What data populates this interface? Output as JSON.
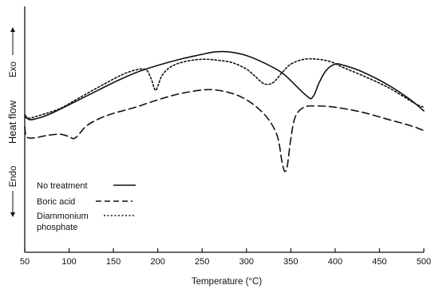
{
  "chart_data": {
    "type": "line",
    "xlabel": "Temperature (°C)",
    "ylabel": {
      "main": "Heat flow",
      "top": "Exo",
      "bottom": "Endo"
    },
    "xlim": [
      50,
      500
    ],
    "ylim": [
      0,
      10
    ],
    "xticks": [
      50,
      100,
      150,
      200,
      250,
      300,
      350,
      400,
      450,
      500
    ],
    "grid": false,
    "legend_position": "bottom-left",
    "series": [
      {
        "name": "No treatment",
        "style": "solid",
        "x": [
          50,
          55,
          65,
          80,
          100,
          125,
          150,
          175,
          200,
          225,
          250,
          265,
          280,
          300,
          320,
          340,
          355,
          365,
          370,
          373,
          377,
          382,
          390,
          400,
          410,
          430,
          460,
          485,
          500
        ],
        "y": [
          5.6,
          5.4,
          5.45,
          5.65,
          6.0,
          6.45,
          6.9,
          7.3,
          7.6,
          7.85,
          8.05,
          8.15,
          8.15,
          8.0,
          7.7,
          7.3,
          6.8,
          6.45,
          6.3,
          6.25,
          6.45,
          6.9,
          7.4,
          7.65,
          7.6,
          7.35,
          6.8,
          6.2,
          5.75
        ]
      },
      {
        "name": "Boric acid",
        "style": "dashed",
        "x": [
          50,
          52,
          60,
          75,
          90,
          100,
          105,
          110,
          120,
          135,
          150,
          175,
          200,
          225,
          250,
          265,
          280,
          295,
          310,
          325,
          335,
          340,
          343,
          346,
          350,
          355,
          365,
          380,
          400,
          430,
          460,
          485,
          500
        ],
        "y": [
          5.1,
          4.7,
          4.65,
          4.75,
          4.8,
          4.7,
          4.62,
          4.75,
          5.15,
          5.45,
          5.65,
          5.9,
          6.2,
          6.45,
          6.6,
          6.6,
          6.5,
          6.3,
          5.95,
          5.4,
          4.7,
          3.7,
          3.3,
          3.5,
          4.6,
          5.5,
          5.9,
          5.95,
          5.9,
          5.7,
          5.4,
          5.15,
          4.95
        ]
      },
      {
        "name": "Diammonium phosphate",
        "style": "dotted",
        "x": [
          50,
          55,
          70,
          90,
          110,
          140,
          165,
          185,
          192,
          197,
          200,
          205,
          215,
          230,
          250,
          270,
          285,
          300,
          310,
          320,
          330,
          340,
          350,
          365,
          380,
          395,
          410,
          430,
          460,
          490,
          500
        ],
        "y": [
          5.5,
          5.45,
          5.6,
          5.85,
          6.25,
          6.85,
          7.3,
          7.45,
          7.1,
          6.6,
          6.75,
          7.2,
          7.55,
          7.75,
          7.85,
          7.8,
          7.7,
          7.45,
          7.15,
          6.85,
          6.9,
          7.3,
          7.65,
          7.85,
          7.85,
          7.75,
          7.5,
          7.2,
          6.7,
          6.05,
          5.9
        ]
      }
    ]
  }
}
